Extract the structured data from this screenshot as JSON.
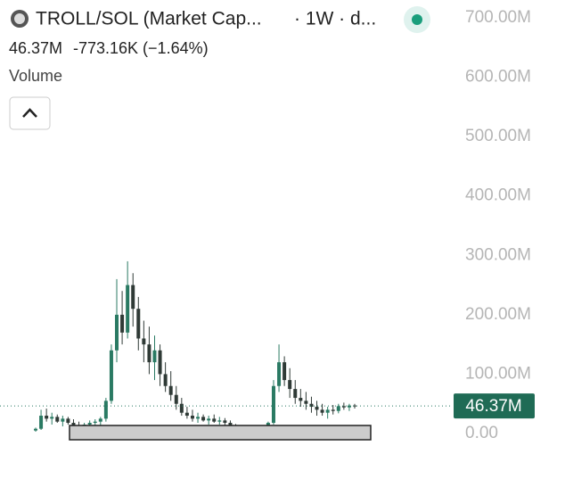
{
  "chart_data": {
    "type": "candlestick",
    "title": "TROLL/SOL (Market Cap...",
    "interval": "· 1W · d...",
    "change": "-773.16K (−1.64%)",
    "volume_label": "Volume",
    "last_price": {
      "value": 46.37,
      "label": "46.37M"
    },
    "up_color": "#2a7a63",
    "down_color": "#2f3a36",
    "ylim": [
      0,
      700
    ],
    "yticks": [
      {
        "value": 0,
        "label": "0.00"
      },
      {
        "value": 100,
        "label": "100.00M"
      },
      {
        "value": 200,
        "label": "200.00M"
      },
      {
        "value": 300,
        "label": "300.00M"
      },
      {
        "value": 400,
        "label": "400.00M"
      },
      {
        "value": 500,
        "label": "500.00M"
      },
      {
        "value": 600,
        "label": "600.00M"
      },
      {
        "value": 700,
        "label": "700.00M"
      }
    ],
    "ohlc": [
      [
        5,
        10,
        3,
        8
      ],
      [
        8,
        40,
        6,
        30
      ],
      [
        30,
        42,
        20,
        25
      ],
      [
        25,
        35,
        15,
        28
      ],
      [
        28,
        32,
        18,
        20
      ],
      [
        20,
        30,
        12,
        25
      ],
      [
        25,
        28,
        15,
        18
      ],
      [
        18,
        24,
        10,
        14
      ],
      [
        14,
        20,
        8,
        12
      ],
      [
        12,
        18,
        6,
        15
      ],
      [
        15,
        22,
        10,
        18
      ],
      [
        18,
        24,
        12,
        20
      ],
      [
        20,
        28,
        14,
        25
      ],
      [
        25,
        60,
        20,
        55
      ],
      [
        55,
        150,
        50,
        140
      ],
      [
        140,
        260,
        120,
        200
      ],
      [
        200,
        240,
        150,
        170
      ],
      [
        170,
        290,
        160,
        250
      ],
      [
        250,
        270,
        180,
        210
      ],
      [
        210,
        230,
        140,
        160
      ],
      [
        160,
        190,
        120,
        150
      ],
      [
        150,
        180,
        100,
        120
      ],
      [
        120,
        165,
        90,
        140
      ],
      [
        140,
        150,
        80,
        100
      ],
      [
        100,
        120,
        70,
        80
      ],
      [
        80,
        105,
        55,
        65
      ],
      [
        65,
        80,
        40,
        50
      ],
      [
        50,
        60,
        30,
        35
      ],
      [
        35,
        45,
        25,
        30
      ],
      [
        30,
        40,
        20,
        25
      ],
      [
        25,
        35,
        18,
        28
      ],
      [
        28,
        32,
        20,
        22
      ],
      [
        22,
        30,
        15,
        25
      ],
      [
        25,
        32,
        18,
        20
      ],
      [
        20,
        28,
        15,
        22
      ],
      [
        22,
        26,
        14,
        18
      ],
      [
        18,
        22,
        10,
        12
      ],
      [
        12,
        16,
        8,
        10
      ],
      [
        10,
        14,
        6,
        9
      ],
      [
        9,
        12,
        6,
        10
      ],
      [
        10,
        13,
        7,
        8
      ],
      [
        8,
        12,
        6,
        10
      ],
      [
        10,
        14,
        7,
        12
      ],
      [
        12,
        20,
        10,
        18
      ],
      [
        18,
        90,
        15,
        80
      ],
      [
        80,
        150,
        70,
        120
      ],
      [
        120,
        130,
        80,
        90
      ],
      [
        90,
        110,
        60,
        75
      ],
      [
        75,
        90,
        50,
        60
      ],
      [
        60,
        75,
        45,
        55
      ],
      [
        55,
        70,
        40,
        50
      ],
      [
        50,
        62,
        35,
        45
      ],
      [
        45,
        55,
        30,
        40
      ],
      [
        40,
        50,
        30,
        35
      ],
      [
        35,
        45,
        25,
        40
      ],
      [
        40,
        48,
        32,
        38
      ],
      [
        38,
        50,
        34,
        46
      ],
      [
        46,
        52,
        40,
        44
      ],
      [
        44,
        50,
        38,
        47.14
      ],
      [
        47.14,
        50,
        42,
        46.37
      ]
    ]
  }
}
